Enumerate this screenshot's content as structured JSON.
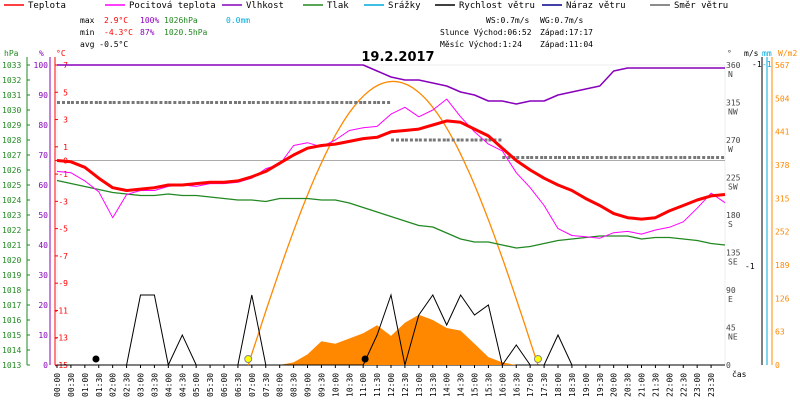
{
  "chart_data": {
    "type": "line",
    "title": "19.2.2017",
    "legend": [
      {
        "key": "teplota",
        "label": "Teplota",
        "color": "#ff0000"
      },
      {
        "key": "pocit",
        "label": "Pocitová teplota",
        "color": "#ff00ff"
      },
      {
        "key": "vlhkost",
        "label": "Vlhkost",
        "color": "#8800bb"
      },
      {
        "key": "tlak",
        "label": "Tlak",
        "color": "#228822"
      },
      {
        "key": "srazky",
        "label": "Srážky",
        "color": "#00aadd"
      },
      {
        "key": "rychlost",
        "label": "Rychlost větru",
        "color": "#000000"
      },
      {
        "key": "naraz",
        "label": "Náraz větru",
        "color": "#000088"
      },
      {
        "key": "smer",
        "label": "Směr větru",
        "color": "#666666"
      }
    ],
    "stats": {
      "max_label": "max",
      "max_temp": "2.9°C",
      "max_hum": "100%",
      "max_press": "1026hPa",
      "max_rain": "0.0mm",
      "min_label": "min",
      "min_temp": "-4.3°C",
      "min_hum": "87%",
      "min_press": "1020.5hPa",
      "avg_label": "avg",
      "avg_temp": "-0.5°C",
      "ws": "WS:0.7m/s",
      "wg": "WG:0.7m/s",
      "slunce": "Slunce Východ:06:52",
      "slunce_zapad": "Západ:17:17",
      "mesic": "Měsíc Východ:1:24",
      "mesic_zapad": "Západ:11:04"
    },
    "axes": {
      "hpa_title": "hPa",
      "pct_title": "%",
      "c_title": "°C",
      "deg_title": "°",
      "ms_title": "m/s",
      "mm_title": "mm",
      "wm_title": "W/m2",
      "x_title": "čas",
      "hpa_ticks": [
        "1033",
        "1032",
        "1031",
        "1030",
        "1029",
        "1028",
        "1027",
        "1026",
        "1025",
        "1024",
        "1023",
        "1022",
        "1021",
        "1020",
        "1019",
        "1018",
        "1017",
        "1016",
        "1015",
        "1014",
        "1013"
      ],
      "pct_ticks": [
        "100",
        "90",
        "80",
        "70",
        "60",
        "50",
        "40",
        "30",
        "20",
        "10",
        "0"
      ],
      "c_ticks": [
        "7",
        "5",
        "3",
        "1",
        "0",
        "-1",
        "-3",
        "-5",
        "-7",
        "-9",
        "-11",
        "-13",
        "-15"
      ],
      "deg_ticks": [
        {
          "v": "360",
          "d": "N"
        },
        {
          "v": "315",
          "d": "NW"
        },
        {
          "v": "270",
          "d": "W"
        },
        {
          "v": "225",
          "d": "SW"
        },
        {
          "v": "180",
          "d": "S"
        },
        {
          "v": "135",
          "d": "SE"
        },
        {
          "v": "90",
          "d": "E"
        },
        {
          "v": "45",
          "d": "NE"
        },
        {
          "v": "0",
          "d": ""
        }
      ],
      "ms_top": "-1",
      "ms_mid": "-1",
      "mm_top": "-1",
      "wm_ticks": [
        "567",
        "504",
        "441",
        "378",
        "315",
        "252",
        "189",
        "126",
        "63",
        "0"
      ],
      "x_ticks": [
        "00:00",
        "00:30",
        "01:00",
        "01:30",
        "02:00",
        "02:30",
        "03:00",
        "03:30",
        "04:00",
        "04:30",
        "05:00",
        "05:30",
        "06:00",
        "06:30",
        "07:00",
        "07:30",
        "08:00",
        "08:30",
        "09:00",
        "09:30",
        "10:00",
        "10:30",
        "11:00",
        "11:30",
        "12:00",
        "12:30",
        "13:00",
        "13:30",
        "14:00",
        "14:30",
        "15:00",
        "15:30",
        "16:00",
        "16:30",
        "17:00",
        "17:30",
        "18:00",
        "18:30",
        "19:00",
        "19:30",
        "20:00",
        "20:30",
        "21:00",
        "21:30",
        "22:00",
        "22:30",
        "23:00",
        "23:30"
      ]
    },
    "x_hours": [
      0,
      0.5,
      1,
      1.5,
      2,
      2.5,
      3,
      3.5,
      4,
      4.5,
      5,
      5.5,
      6,
      6.5,
      7,
      7.5,
      8,
      8.5,
      9,
      9.5,
      10,
      10.5,
      11,
      11.5,
      12,
      12.5,
      13,
      13.5,
      14,
      14.5,
      15,
      15.5,
      16,
      16.5,
      17,
      17.5,
      18,
      18.5,
      19,
      19.5,
      20,
      20.5,
      21,
      21.5,
      22,
      22.5,
      23,
      23.5,
      24
    ],
    "temperature_c": [
      0,
      -0.1,
      -0.5,
      -1.3,
      -2,
      -2.2,
      -2.1,
      -2,
      -1.8,
      -1.8,
      -1.7,
      -1.6,
      -1.6,
      -1.5,
      -1.2,
      -0.8,
      -0.2,
      0.4,
      0.9,
      1.1,
      1.2,
      1.4,
      1.6,
      1.7,
      2.1,
      2.2,
      2.3,
      2.6,
      2.9,
      2.8,
      2.3,
      1.8,
      0.9,
      0,
      -0.7,
      -1.3,
      -1.8,
      -2.2,
      -2.8,
      -3.3,
      -3.9,
      -4.2,
      -4.3,
      -4.2,
      -3.7,
      -3.3,
      -2.9,
      -2.6,
      -2.5
    ],
    "feels_like_c": [
      -0.8,
      -0.9,
      -1.5,
      -2.3,
      -4.2,
      -2.5,
      -2.2,
      -2.2,
      -1.9,
      -1.8,
      -1.9,
      -1.7,
      -1.7,
      -1.6,
      -1.3,
      -0.6,
      -0.3,
      1.1,
      1.3,
      1,
      1.5,
      2.2,
      2.4,
      2.5,
      3.4,
      3.9,
      3.2,
      3.7,
      4.5,
      3.2,
      2.1,
      1.2,
      0.7,
      -0.9,
      -2,
      -3.3,
      -5,
      -5.5,
      -5.6,
      -5.7,
      -5.3,
      -5.2,
      -5.4,
      -5.1,
      -4.9,
      -4.5,
      -3.5,
      -2.4,
      -3.1
    ],
    "humidity_pct": [
      100,
      100,
      100,
      100,
      100,
      100,
      100,
      100,
      100,
      100,
      100,
      100,
      100,
      100,
      100,
      100,
      100,
      100,
      100,
      100,
      100,
      100,
      100,
      98,
      96,
      95,
      95,
      94,
      93,
      91,
      90,
      88,
      88,
      87,
      88,
      88,
      90,
      91,
      92,
      93,
      98,
      99,
      99,
      99,
      99,
      99,
      99,
      99,
      99
    ],
    "pressure_hpa": [
      1025.3,
      1025.1,
      1024.9,
      1024.7,
      1024.5,
      1024.4,
      1024.3,
      1024.3,
      1024.4,
      1024.3,
      1024.3,
      1024.2,
      1024.1,
      1024,
      1024,
      1023.9,
      1024.1,
      1024.1,
      1024.1,
      1024,
      1024,
      1023.8,
      1023.5,
      1023.2,
      1022.9,
      1022.6,
      1022.3,
      1022.2,
      1021.8,
      1021.4,
      1021.2,
      1021.2,
      1021,
      1020.8,
      1020.9,
      1021.1,
      1021.3,
      1021.4,
      1021.5,
      1021.6,
      1021.6,
      1021.6,
      1021.4,
      1021.5,
      1021.5,
      1021.4,
      1021.3,
      1021.1,
      1021
    ],
    "wind_speed_ms": [
      0,
      0,
      0,
      0,
      0,
      0,
      0.7,
      0.7,
      0,
      0.3,
      0,
      0,
      0,
      0,
      0.7,
      0,
      0,
      0,
      0,
      0,
      0,
      0,
      0,
      0.3,
      0.7,
      0,
      0.5,
      0.7,
      0.4,
      0.7,
      0.5,
      0.6,
      0,
      0.2,
      0,
      0,
      0.3,
      0,
      0,
      0,
      0,
      0,
      0,
      0,
      0,
      0,
      0,
      0,
      0
    ],
    "wind_dir_deg": [
      315,
      315,
      315,
      315,
      315,
      315,
      315,
      315,
      315,
      315,
      315,
      315,
      315,
      315,
      315,
      315,
      315,
      315,
      315,
      315,
      315,
      315,
      315,
      315,
      270,
      270,
      270,
      270,
      270,
      270,
      270,
      270,
      249,
      249,
      249,
      249,
      249,
      249,
      249,
      249,
      249,
      249,
      249,
      249,
      249,
      249,
      249,
      249,
      249
    ],
    "solar_wm2": [
      0,
      0,
      0,
      0,
      0,
      0,
      0,
      0,
      0,
      0,
      0,
      0,
      0,
      0,
      0,
      0,
      0,
      5,
      20,
      45,
      40,
      50,
      60,
      75,
      55,
      80,
      95,
      85,
      70,
      65,
      40,
      15,
      5,
      0,
      0,
      0,
      0,
      0,
      0,
      0,
      0,
      0,
      0,
      0,
      0,
      0,
      0,
      0,
      0
    ],
    "solar_theoretical_peak_wm2": 536,
    "sunrise_hour": 6.87,
    "sunset_hour": 17.28,
    "ranges": {
      "temp_c": [
        -15,
        7
      ],
      "humidity_pct": [
        0,
        100
      ],
      "pressure_hpa": [
        1013,
        1033
      ],
      "wind_dir_deg": [
        0,
        360
      ],
      "solar_wm2": [
        0,
        567
      ],
      "wind_ms": [
        0,
        1
      ]
    },
    "grid": false
  }
}
